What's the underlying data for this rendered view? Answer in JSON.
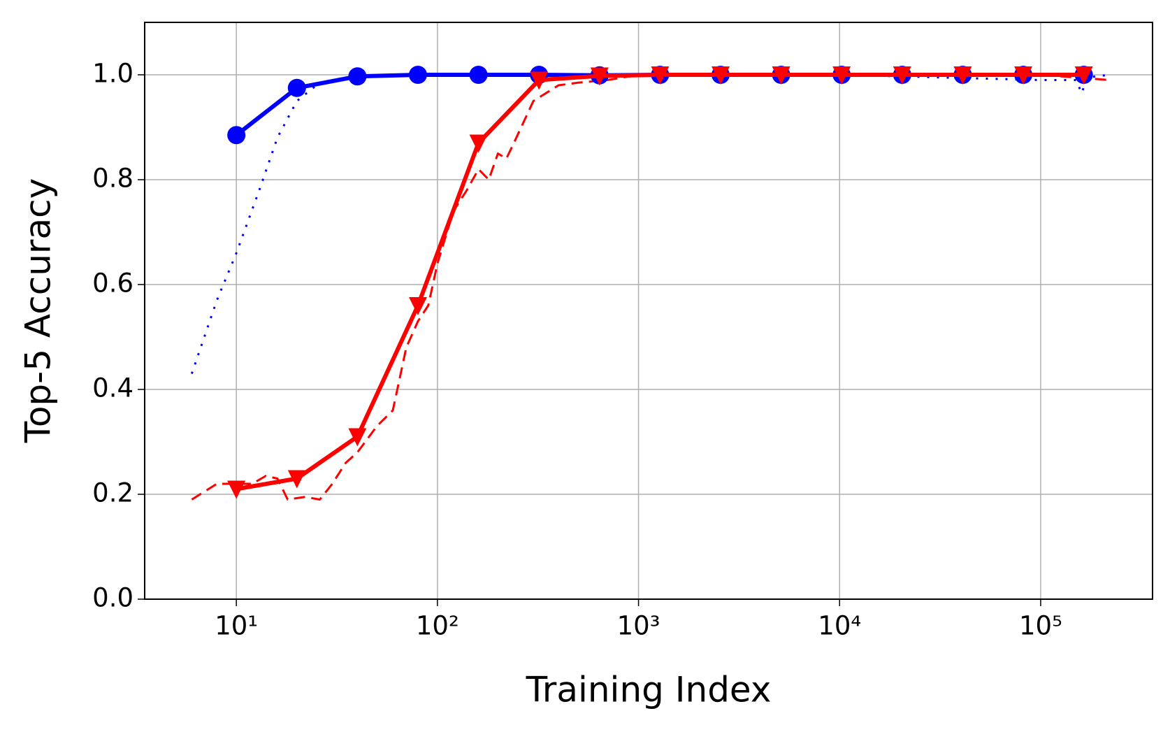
{
  "chart_data": {
    "type": "line",
    "xlabel": "Training Index",
    "ylabel": "Top-5 Accuracy",
    "xscale": "log",
    "grid": true,
    "xlim": [
      3.5,
      360000
    ],
    "ylim": [
      0,
      1.1
    ],
    "xticks": [
      {
        "value": 10,
        "label": "10¹"
      },
      {
        "value": 100,
        "label": "10²"
      },
      {
        "value": 1000,
        "label": "10³"
      },
      {
        "value": 10000,
        "label": "10⁴"
      },
      {
        "value": 100000,
        "label": "10⁵"
      }
    ],
    "yticks": [
      {
        "value": 0,
        "label": "0.0"
      },
      {
        "value": 0.2,
        "label": "0.2"
      },
      {
        "value": 0.4,
        "label": "0.4"
      },
      {
        "value": 0.6,
        "label": "0.6"
      },
      {
        "value": 0.8,
        "label": "0.8"
      },
      {
        "value": 1.0,
        "label": "1.0"
      }
    ],
    "series": [
      {
        "color": "#0000ff",
        "linestyle": "dotted",
        "marker": "none",
        "x": [
          6,
          8,
          10,
          13,
          16,
          20,
          25,
          30,
          50,
          100,
          1000,
          10000,
          100000,
          150000,
          160000,
          170000,
          220000
        ],
        "values": [
          0.43,
          0.57,
          0.66,
          0.78,
          0.88,
          0.95,
          0.98,
          0.99,
          1.0,
          1.0,
          1.0,
          1.0,
          0.99,
          0.99,
          0.965,
          0.995,
          1.0
        ]
      },
      {
        "color": "#ff0000",
        "linestyle": "dashed",
        "marker": "none",
        "x": [
          6,
          8,
          12,
          14,
          16,
          18,
          22,
          26,
          30,
          35,
          40,
          50,
          60,
          70,
          80,
          90,
          100,
          120,
          140,
          160,
          180,
          200,
          220,
          240,
          300,
          400,
          500,
          700,
          1000,
          10000,
          100000,
          220000
        ],
        "values": [
          0.19,
          0.22,
          0.22,
          0.235,
          0.23,
          0.19,
          0.195,
          0.19,
          0.22,
          0.26,
          0.28,
          0.33,
          0.36,
          0.48,
          0.53,
          0.56,
          0.64,
          0.74,
          0.78,
          0.82,
          0.8,
          0.85,
          0.84,
          0.87,
          0.95,
          0.98,
          0.985,
          0.99,
          1.0,
          1.0,
          1.0,
          0.99
        ]
      },
      {
        "color": "#0000ff",
        "linestyle": "solid",
        "marker": "circle",
        "x": [
          10,
          20,
          40,
          80,
          160,
          320,
          640,
          1280,
          2560,
          5120,
          10240,
          20480,
          40960,
          81920,
          163840
        ],
        "values": [
          0.885,
          0.975,
          0.997,
          1.0,
          1.0,
          1.0,
          0.999,
          1.0,
          1.0,
          1.0,
          1.0,
          1.0,
          1.0,
          1.0,
          1.0
        ]
      },
      {
        "color": "#ff0000",
        "linestyle": "solid",
        "marker": "triangle",
        "x": [
          10,
          20,
          40,
          80,
          160,
          320,
          640,
          1280,
          2560,
          5120,
          10240,
          20480,
          40960,
          81920,
          163840
        ],
        "values": [
          0.21,
          0.23,
          0.31,
          0.56,
          0.87,
          0.99,
          0.998,
          1.0,
          1.0,
          1.0,
          1.0,
          1.0,
          1.0,
          1.0,
          1.0
        ]
      }
    ]
  }
}
